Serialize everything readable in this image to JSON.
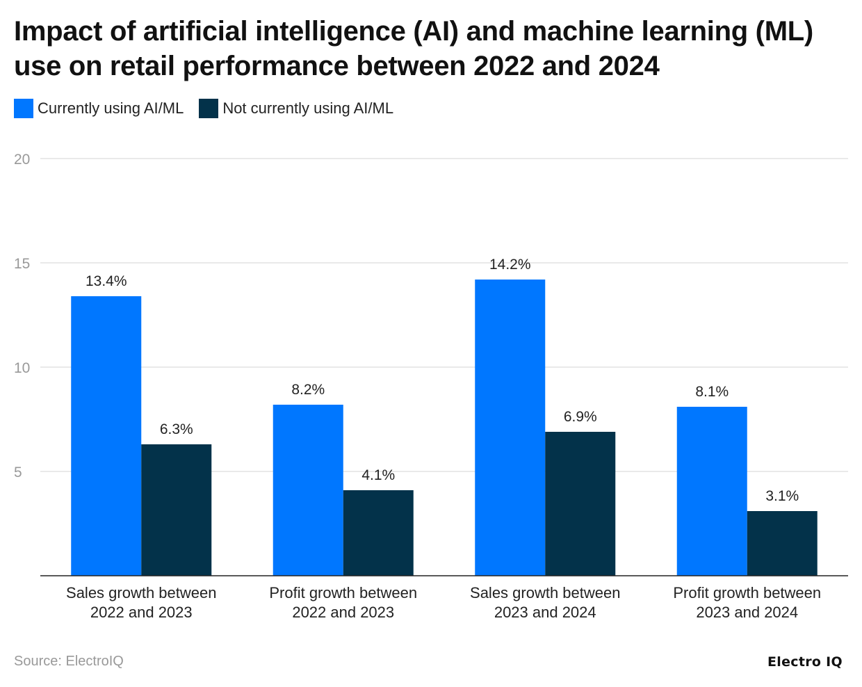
{
  "chart_data": {
    "type": "bar",
    "title": "Impact of artificial intelligence (AI) and machine learning (ML) use on retail performance between 2022 and 2024",
    "categories": [
      [
        "Sales growth between",
        "2022 and 2023"
      ],
      [
        "Profit growth between",
        "2022 and 2023"
      ],
      [
        "Sales growth between",
        "2023 and 2024"
      ],
      [
        "Profit growth between",
        "2023 and 2024"
      ]
    ],
    "series": [
      {
        "name": "Currently using AI/ML",
        "color": "#0077FF",
        "values": [
          13.4,
          8.2,
          14.2,
          8.1
        ],
        "labels": [
          "13.4%",
          "8.2%",
          "14.2%",
          "8.1%"
        ]
      },
      {
        "name": "Not currently using AI/ML",
        "color": "#03324A",
        "values": [
          6.3,
          4.1,
          6.9,
          3.1
        ],
        "labels": [
          "6.3%",
          "4.1%",
          "6.9%",
          "3.1%"
        ]
      }
    ],
    "ylim": [
      0,
      20
    ],
    "yticks": [
      5,
      10,
      15,
      20
    ],
    "ytick_labels": [
      "5",
      "10",
      "15",
      "20"
    ],
    "xlabel": "",
    "ylabel": "",
    "grid": true,
    "legend": "top-left"
  },
  "footer": {
    "source": "Source: ElectroIQ",
    "logo": "Electro IQ"
  }
}
